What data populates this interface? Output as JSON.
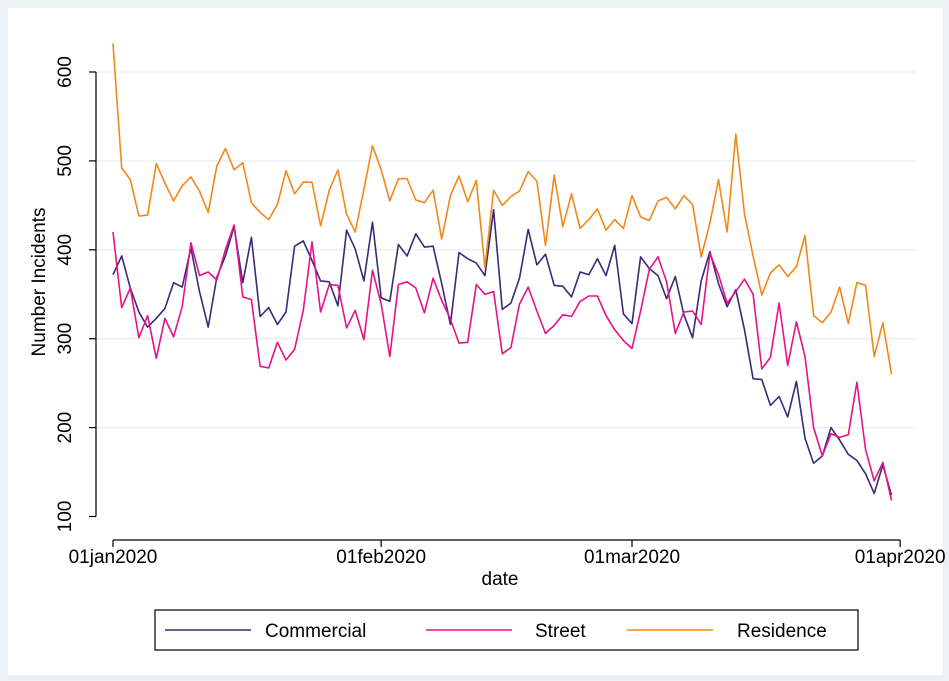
{
  "chart_data": {
    "type": "line",
    "xlabel": "date",
    "ylabel": "Number Incidents",
    "xlim": [
      "2020-01-01",
      "2020-03-31"
    ],
    "ylim": [
      100,
      640
    ],
    "y_ticks": [
      100,
      200,
      300,
      400,
      500,
      600
    ],
    "x_ticks": [
      {
        "date": "2020-01-01",
        "label": "01jan2020"
      },
      {
        "date": "2020-02-01",
        "label": "01feb2020"
      },
      {
        "date": "2020-03-01",
        "label": "01mar2020"
      },
      {
        "date": "2020-04-01",
        "label": "01apr2020"
      }
    ],
    "grid": "horizontal",
    "legend_position": "bottom",
    "start_date": "2020-01-01",
    "series": [
      {
        "name": "Commercial",
        "color": "#3a2a78",
        "values": [
          372,
          393,
          357,
          330,
          313,
          323,
          334,
          363,
          358,
          402,
          353,
          313,
          369,
          393,
          426,
          363,
          414,
          325,
          335,
          316,
          330,
          404,
          410,
          388,
          365,
          364,
          337,
          422,
          401,
          365,
          431,
          346,
          342,
          406,
          393,
          418,
          403,
          404,
          362,
          316,
          397,
          390,
          385,
          371,
          445,
          333,
          340,
          368,
          423,
          383,
          395,
          360,
          359,
          347,
          375,
          372,
          390,
          371,
          405,
          328,
          317,
          392,
          379,
          371,
          345,
          370,
          327,
          301,
          365,
          398,
          362,
          336,
          355,
          310,
          255,
          254,
          225,
          235,
          212,
          252,
          188,
          160,
          168,
          200,
          186,
          170,
          163,
          148,
          126,
          158,
          124
        ]
      },
      {
        "name": "Street",
        "color": "#e6128a",
        "values": [
          420,
          335,
          357,
          301,
          326,
          278,
          323,
          302,
          336,
          408,
          371,
          375,
          366,
          400,
          428,
          347,
          344,
          269,
          267,
          296,
          276,
          288,
          332,
          409,
          330,
          361,
          360,
          312,
          332,
          299,
          377,
          339,
          280,
          361,
          364,
          357,
          329,
          368,
          343,
          322,
          295,
          296,
          361,
          350,
          353,
          283,
          290,
          339,
          358,
          331,
          306,
          315,
          327,
          325,
          342,
          348,
          348,
          326,
          310,
          298,
          289,
          331,
          378,
          392,
          364,
          306,
          330,
          331,
          316,
          396,
          372,
          340,
          353,
          367,
          350,
          266,
          279,
          340,
          270,
          319,
          280,
          200,
          168,
          193,
          189,
          192,
          251,
          175,
          140,
          161,
          118
        ]
      },
      {
        "name": "Residence",
        "color": "#f0891a",
        "values": [
          632,
          492,
          479,
          438,
          439,
          497,
          475,
          455,
          472,
          482,
          466,
          442,
          494,
          514,
          490,
          498,
          453,
          442,
          434,
          451,
          489,
          463,
          476,
          476,
          427,
          467,
          490,
          440,
          420,
          468,
          517,
          490,
          455,
          480,
          480,
          456,
          453,
          467,
          412,
          461,
          483,
          454,
          478,
          380,
          467,
          450,
          460,
          466,
          488,
          477,
          405,
          484,
          426,
          463,
          424,
          434,
          446,
          422,
          434,
          424,
          461,
          437,
          433,
          455,
          459,
          446,
          461,
          451,
          392,
          430,
          479,
          420,
          530,
          440,
          393,
          349,
          374,
          383,
          370,
          381,
          416,
          326,
          318,
          330,
          358,
          317,
          363,
          360,
          280,
          318,
          260
        ]
      }
    ]
  }
}
